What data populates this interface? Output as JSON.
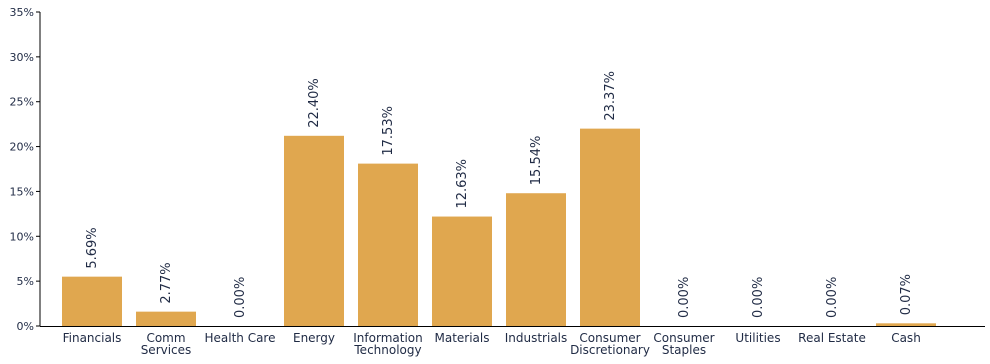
{
  "chart_data": {
    "type": "bar",
    "title": "",
    "xlabel": "",
    "ylabel": "",
    "ylim": [
      0,
      35
    ],
    "y_ticks": [
      0,
      5,
      10,
      15,
      20,
      25,
      30,
      35
    ],
    "y_tick_labels": [
      "0%",
      "5%",
      "10%",
      "15%",
      "20%",
      "25%",
      "30%",
      "35%"
    ],
    "grid": false,
    "legend": "none",
    "bar_color": "#E0A74F",
    "axis_color": "#000000",
    "text_color": "#1F2A44",
    "categories": [
      [
        "Financials"
      ],
      [
        "Comm",
        "Services"
      ],
      [
        "Health Care"
      ],
      [
        "Energy"
      ],
      [
        "Information",
        "Technology"
      ],
      [
        "Materials"
      ],
      [
        "Industrials"
      ],
      [
        "Consumer",
        "Discretionary"
      ],
      [
        "Consumer",
        "Staples"
      ],
      [
        "Utilities"
      ],
      [
        "Real Estate"
      ],
      [
        "Cash"
      ]
    ],
    "values": [
      5.69,
      2.77,
      0.0,
      22.4,
      17.53,
      12.63,
      15.54,
      23.37,
      0.0,
      0.0,
      0.0,
      0.07
    ],
    "bar_heights": [
      5.5,
      1.6,
      0.0,
      21.2,
      18.1,
      12.2,
      14.8,
      22.0,
      0.0,
      0.0,
      0.0,
      0.3
    ],
    "data_labels": [
      "5.69%",
      "2.77%",
      "0.00%",
      "22.40%",
      "17.53%",
      "12.63%",
      "15.54%",
      "23.37%",
      "0.00%",
      "0.00%",
      "0.00%",
      "0.07%"
    ]
  }
}
